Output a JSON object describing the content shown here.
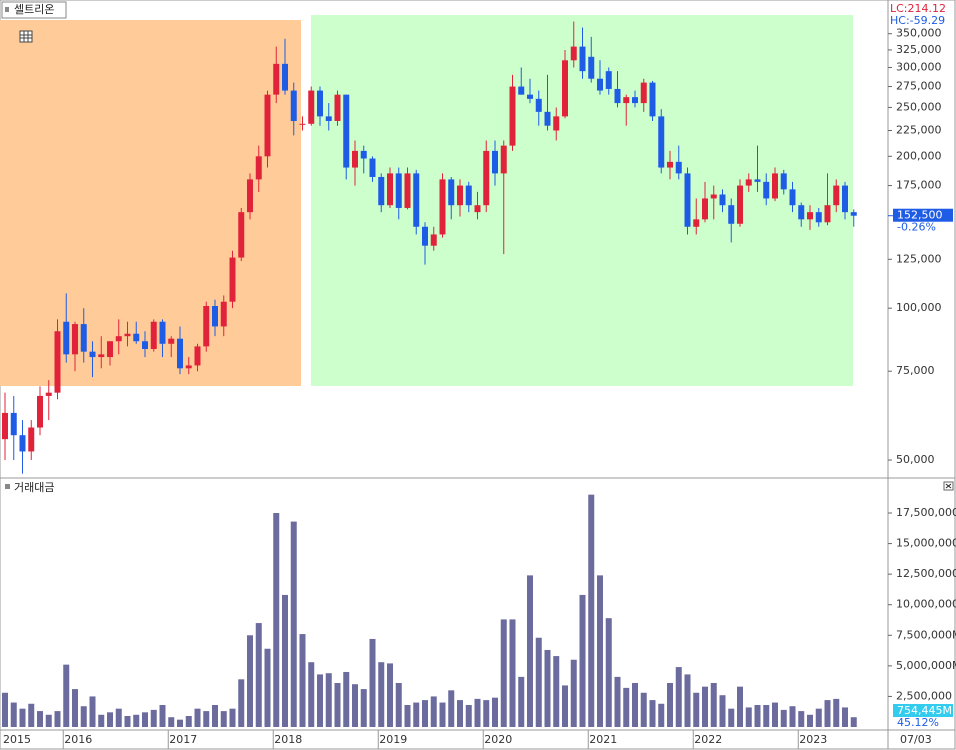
{
  "title": "셀트리온",
  "lc_label": "LC:214.12",
  "hc_label": "HC:-59.29",
  "last_close_label": "152,500",
  "change_label": "-0.26%",
  "volume_last_label": "754,445M",
  "volume_pct_label": "45.12%",
  "x_end_label": "07/03",
  "chart_data": [
    {
      "type": "candlestick",
      "log_scale": true,
      "up_color": "#e0233a",
      "down_color": "#1e5ce6",
      "categories": [
        "2015",
        null,
        null,
        null,
        null,
        null,
        null,
        "2016",
        null,
        null,
        null,
        null,
        null,
        null,
        null,
        null,
        null,
        null,
        null,
        "2017",
        null,
        null,
        null,
        null,
        null,
        null,
        null,
        null,
        null,
        null,
        null,
        "2018",
        null,
        null,
        null,
        null,
        null,
        null,
        null,
        null,
        null,
        null,
        null,
        "2019",
        null,
        null,
        null,
        null,
        null,
        null,
        null,
        null,
        null,
        null,
        null,
        "2020",
        null,
        null,
        null,
        null,
        null,
        null,
        null,
        null,
        null,
        null,
        null,
        "2021",
        null,
        null,
        null,
        null,
        null,
        null,
        null,
        null,
        null,
        null,
        null,
        "2022",
        null,
        null,
        null,
        null,
        null,
        null,
        null,
        null,
        null,
        null,
        null,
        "2023",
        null,
        null,
        null,
        null,
        null,
        null
      ],
      "open": [
        55000,
        62000,
        56000,
        52000,
        58000,
        67000,
        68000,
        94000,
        81000,
        93000,
        82000,
        80000,
        80000,
        86000,
        88000,
        89000,
        86000,
        83000,
        94000,
        85000,
        87000,
        76000,
        77000,
        84000,
        101000,
        92000,
        103000,
        126000,
        155000,
        180000,
        200000,
        265000,
        305000,
        270000,
        232000,
        232000,
        270000,
        240000,
        235000,
        265000,
        190000,
        205000,
        198000,
        182000,
        160000,
        185000,
        158000,
        185000,
        145000,
        133000,
        140000,
        180000,
        160000,
        175000,
        155000,
        160000,
        205000,
        185000,
        210000,
        275000,
        265000,
        260000,
        245000,
        225000,
        240000,
        310000,
        330000,
        315000,
        285000,
        295000,
        272000,
        255000,
        262000,
        255000,
        280000,
        240000,
        190000,
        195000,
        185000,
        145000,
        150000,
        165000,
        168000,
        160000,
        147000,
        175000,
        180000,
        178000,
        165000,
        185000,
        172000,
        160000,
        150000,
        155000,
        148000,
        160000,
        175000,
        155000
      ],
      "high": [
        68000,
        67000,
        60000,
        60000,
        70000,
        72000,
        95000,
        107000,
        94000,
        100000,
        86000,
        88000,
        86000,
        95000,
        94000,
        94000,
        90000,
        95000,
        95000,
        88000,
        92000,
        80000,
        85000,
        103000,
        104000,
        106000,
        130000,
        158000,
        185000,
        210000,
        270000,
        330000,
        342000,
        280000,
        240000,
        275000,
        275000,
        255000,
        270000,
        265000,
        215000,
        210000,
        200000,
        185000,
        190000,
        190000,
        190000,
        188000,
        148000,
        145000,
        185000,
        182000,
        180000,
        178000,
        170000,
        215000,
        215000,
        215000,
        290000,
        300000,
        285000,
        270000,
        290000,
        250000,
        325000,
        370000,
        360000,
        345000,
        310000,
        300000,
        295000,
        265000,
        270000,
        285000,
        282000,
        248000,
        205000,
        210000,
        190000,
        165000,
        178000,
        175000,
        172000,
        165000,
        180000,
        185000,
        210000,
        185000,
        190000,
        188000,
        178000,
        162000,
        160000,
        158000,
        185000,
        180000,
        178000,
        157000
      ],
      "low": [
        50000,
        50000,
        47000,
        50000,
        56000,
        60000,
        66000,
        78000,
        75000,
        78000,
        73000,
        76000,
        77000,
        81000,
        84000,
        85000,
        80000,
        82000,
        80000,
        80000,
        74000,
        74000,
        75000,
        82000,
        88000,
        88000,
        100000,
        124000,
        150000,
        170000,
        190000,
        255000,
        265000,
        220000,
        225000,
        230000,
        230000,
        225000,
        230000,
        180000,
        175000,
        185000,
        178000,
        155000,
        158000,
        150000,
        157000,
        140000,
        122000,
        130000,
        138000,
        150000,
        152000,
        155000,
        150000,
        155000,
        175000,
        128000,
        205000,
        265000,
        255000,
        230000,
        225000,
        215000,
        238000,
        300000,
        285000,
        280000,
        265000,
        265000,
        250000,
        230000,
        250000,
        245000,
        235000,
        185000,
        180000,
        180000,
        140000,
        140000,
        148000,
        150000,
        155000,
        135000,
        145000,
        170000,
        170000,
        160000,
        163000,
        168000,
        155000,
        145000,
        143000,
        145000,
        146000,
        155000,
        150000,
        145000
      ],
      "close": [
        62000,
        56000,
        52000,
        58000,
        67000,
        68000,
        90000,
        81000,
        93000,
        82000,
        80000,
        81000,
        86000,
        88000,
        89000,
        86000,
        83000,
        94000,
        85000,
        87000,
        76000,
        77000,
        84000,
        101000,
        92000,
        103000,
        126000,
        155000,
        180000,
        200000,
        265000,
        305000,
        270000,
        235000,
        232000,
        270000,
        240000,
        235000,
        265000,
        190000,
        205000,
        198000,
        182000,
        160000,
        185000,
        158000,
        185000,
        145000,
        133000,
        140000,
        180000,
        160000,
        175000,
        160000,
        160000,
        205000,
        185000,
        210000,
        275000,
        265000,
        260000,
        245000,
        230000,
        240000,
        310000,
        330000,
        295000,
        285000,
        270000,
        272000,
        255000,
        262000,
        255000,
        280000,
        240000,
        190000,
        195000,
        185000,
        145000,
        150000,
        165000,
        168000,
        160000,
        147000,
        175000,
        180000,
        178000,
        165000,
        185000,
        172000,
        160000,
        150000,
        155000,
        148000,
        160000,
        175000,
        155000,
        152500
      ],
      "ylim": [
        46700,
        399000
      ],
      "yticks": [
        {
          "value": 50000,
          "label": "50,000"
        },
        {
          "value": 75000,
          "label": "75,000"
        },
        {
          "value": 100000,
          "label": "100,000"
        },
        {
          "value": 125000,
          "label": "125,000"
        },
        {
          "value": 175000,
          "label": "175,000"
        },
        {
          "value": 200000,
          "label": "200,000"
        },
        {
          "value": 225000,
          "label": "225,000"
        },
        {
          "value": 250000,
          "label": "250,000"
        },
        {
          "value": 275000,
          "label": "275,000"
        },
        {
          "value": 300000,
          "label": "300,000"
        },
        {
          "value": 325000,
          "label": "325,000"
        },
        {
          "value": 350000,
          "label": "350,000"
        }
      ]
    },
    {
      "type": "bar",
      "title": "거래대금",
      "color": "#6b6b9e",
      "values": [
        2800000,
        2000000,
        1500000,
        1900000,
        1300000,
        1000000,
        1300000,
        5100000,
        3100000,
        1700000,
        2500000,
        1000000,
        1200000,
        1500000,
        900000,
        1000000,
        1200000,
        1400000,
        1800000,
        800000,
        600000,
        900000,
        1500000,
        1300000,
        1800000,
        1300000,
        1500000,
        3900000,
        7500000,
        8500000,
        6400000,
        17500000,
        10800000,
        16800000,
        7600000,
        5300000,
        4300000,
        4400000,
        3600000,
        4500000,
        3500000,
        3100000,
        7200000,
        5300000,
        5200000,
        3600000,
        1800000,
        2000000,
        2200000,
        2500000,
        2000000,
        3000000,
        2200000,
        1800000,
        2300000,
        2200000,
        2400000,
        8800000,
        8800000,
        4100000,
        12400000,
        7300000,
        6300000,
        5800000,
        3400000,
        5500000,
        10800000,
        19000000,
        12400000,
        8900000,
        4100000,
        3200000,
        3600000,
        2800000,
        2200000,
        1900000,
        3600000,
        4900000,
        4300000,
        2800000,
        3300000,
        3600000,
        2600000,
        1500000,
        3300000,
        1600000,
        1800000,
        1800000,
        2000000,
        1400000,
        1700000,
        1300000,
        1000000,
        1500000,
        2200000,
        2300000,
        1600000,
        800000
      ],
      "ylim": [
        0,
        20200000
      ],
      "yticks": [
        {
          "value": 2500000,
          "label": "2,500,000"
        },
        {
          "value": 5000000,
          "label": "5,000,000M"
        },
        {
          "value": 7500000,
          "label": "7,500,000M"
        },
        {
          "value": 10000000,
          "label": "10,000,000"
        },
        {
          "value": 12500000,
          "label": "12,500,000"
        },
        {
          "value": 15000000,
          "label": "15,000,000"
        },
        {
          "value": 17500000,
          "label": "17,500,000"
        }
      ]
    }
  ]
}
